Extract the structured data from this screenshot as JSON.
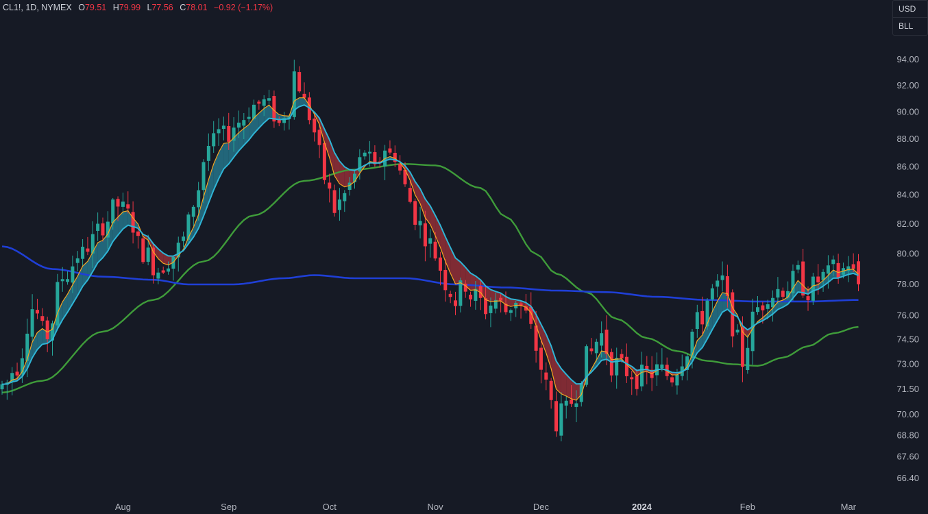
{
  "legend": {
    "symbol": "CL1!, 1D, NYMEX",
    "o_label": "O",
    "o_value": "79.51",
    "h_label": "H",
    "h_value": "79.99",
    "l_label": "L",
    "l_value": "77.56",
    "c_label": "C",
    "c_value": "78.01",
    "change": "−0.92 (−1.17%)"
  },
  "unit_box": {
    "currency": "USD",
    "unit": "BLL"
  },
  "colors": {
    "background": "#161a25",
    "up": "#26a69a",
    "down": "#f23645",
    "ema_fast": "#f5a623",
    "ema_slow": "#2fb5d6",
    "ma_mid": "#3f9c3a",
    "ma_long": "#1f3fd6",
    "cloud_up": "#2a8fa8",
    "cloud_down": "#b8343c",
    "axis_text": "#b2b5be"
  },
  "chart_data": {
    "type": "candlestick",
    "y_axis": {
      "scale": "log",
      "range": [
        65.5,
        96
      ],
      "tick_labels": [
        "94.00",
        "92.00",
        "90.00",
        "88.00",
        "86.00",
        "84.00",
        "82.00",
        "80.00",
        "78.00",
        "76.00",
        "74.50",
        "73.00",
        "71.50",
        "70.00",
        "68.80",
        "67.60",
        "66.40"
      ]
    },
    "x_axis": {
      "tick_labels": [
        "Aug",
        "Sep",
        "Oct",
        "Nov",
        "Dec",
        "2024",
        "Feb",
        "Mar"
      ],
      "bold_labels": [
        "2024"
      ],
      "tick_days": [
        24,
        45,
        65,
        86,
        107,
        127,
        148,
        168
      ]
    },
    "grid": false,
    "overlays": [
      {
        "kind": "ema_fast_line",
        "color": "#f5a623"
      },
      {
        "kind": "ema_slow_line",
        "color": "#2fb5d6"
      },
      {
        "kind": "cloud_fill",
        "up_color": "#2a8fa8",
        "down_color": "#b8343c"
      },
      {
        "kind": "moving_average_mid",
        "color": "#3f9c3a"
      },
      {
        "kind": "moving_average_long",
        "color": "#1f3fd6"
      }
    ],
    "anchors": [
      [
        0,
        71.5
      ],
      [
        3,
        73.0
      ],
      [
        6,
        76.5
      ],
      [
        9,
        74.8
      ],
      [
        12,
        78.5
      ],
      [
        15,
        79.6
      ],
      [
        18,
        80.9
      ],
      [
        20,
        82.0
      ],
      [
        23,
        83.3
      ],
      [
        25,
        82.6
      ],
      [
        28,
        80.2
      ],
      [
        31,
        79.0
      ],
      [
        33,
        79.7
      ],
      [
        36,
        80.6
      ],
      [
        38,
        83.5
      ],
      [
        41,
        87.5
      ],
      [
        44,
        88.2
      ],
      [
        47,
        89.3
      ],
      [
        50,
        90.5
      ],
      [
        52,
        90.7
      ],
      [
        55,
        89.5
      ],
      [
        57,
        90.4
      ],
      [
        58,
        93.0
      ],
      [
        60,
        91.0
      ],
      [
        62,
        88.5
      ],
      [
        64,
        85.2
      ],
      [
        66,
        83.0
      ],
      [
        68,
        84.0
      ],
      [
        70,
        85.4
      ],
      [
        72,
        87.2
      ],
      [
        74,
        85.6
      ],
      [
        76,
        87.4
      ],
      [
        78,
        86.9
      ],
      [
        80,
        84.5
      ],
      [
        82,
        82.6
      ],
      [
        84,
        81.3
      ],
      [
        86,
        80.0
      ],
      [
        88,
        78.2
      ],
      [
        90,
        77.0
      ],
      [
        92,
        78.1
      ],
      [
        94,
        77.2
      ],
      [
        96,
        76.5
      ],
      [
        98,
        77.0
      ],
      [
        100,
        76.3
      ],
      [
        102,
        77.1
      ],
      [
        104,
        76.0
      ],
      [
        106,
        74.0
      ],
      [
        108,
        71.6
      ],
      [
        110,
        69.7
      ],
      [
        112,
        70.1
      ],
      [
        113,
        70.8
      ],
      [
        116,
        73.3
      ],
      [
        119,
        74.8
      ],
      [
        121,
        73.1
      ],
      [
        124,
        72.6
      ],
      [
        127,
        72.2
      ],
      [
        130,
        72.6
      ],
      [
        133,
        72.3
      ],
      [
        135,
        73.5
      ],
      [
        138,
        75.5
      ],
      [
        141,
        77.5
      ],
      [
        143,
        77.8
      ],
      [
        145,
        75.5
      ],
      [
        147,
        73.2
      ],
      [
        149,
        75.7
      ],
      [
        152,
        77.3
      ],
      [
        155,
        77.8
      ],
      [
        158,
        78.3
      ],
      [
        160,
        77.6
      ],
      [
        163,
        78.5
      ],
      [
        166,
        78.7
      ],
      [
        168,
        79.2
      ],
      [
        170,
        78.7
      ]
    ],
    "mid_ma": [
      [
        0,
        71.3
      ],
      [
        8,
        72.0
      ],
      [
        20,
        75.0
      ],
      [
        30,
        77.0
      ],
      [
        40,
        79.5
      ],
      [
        50,
        82.6
      ],
      [
        60,
        85.0
      ],
      [
        70,
        85.8
      ],
      [
        80,
        86.2
      ],
      [
        86,
        86.1
      ],
      [
        95,
        84.5
      ],
      [
        100,
        82.5
      ],
      [
        106,
        80.0
      ],
      [
        110,
        78.7
      ],
      [
        116,
        77.5
      ],
      [
        122,
        75.8
      ],
      [
        128,
        74.6
      ],
      [
        134,
        73.8
      ],
      [
        140,
        73.2
      ],
      [
        145,
        73.0
      ],
      [
        150,
        72.9
      ],
      [
        155,
        73.4
      ],
      [
        160,
        74.1
      ],
      [
        165,
        74.9
      ],
      [
        170,
        75.3
      ]
    ],
    "long_ma": [
      [
        0,
        80.5
      ],
      [
        10,
        79.0
      ],
      [
        20,
        78.5
      ],
      [
        30,
        78.3
      ],
      [
        37,
        78.0
      ],
      [
        46,
        78.0
      ],
      [
        56,
        78.4
      ],
      [
        62,
        78.6
      ],
      [
        70,
        78.4
      ],
      [
        80,
        78.4
      ],
      [
        90,
        78.0
      ],
      [
        100,
        77.8
      ],
      [
        110,
        77.6
      ],
      [
        120,
        77.5
      ],
      [
        130,
        77.2
      ],
      [
        140,
        77.0
      ],
      [
        150,
        76.9
      ],
      [
        160,
        76.9
      ],
      [
        170,
        77.0
      ]
    ]
  }
}
